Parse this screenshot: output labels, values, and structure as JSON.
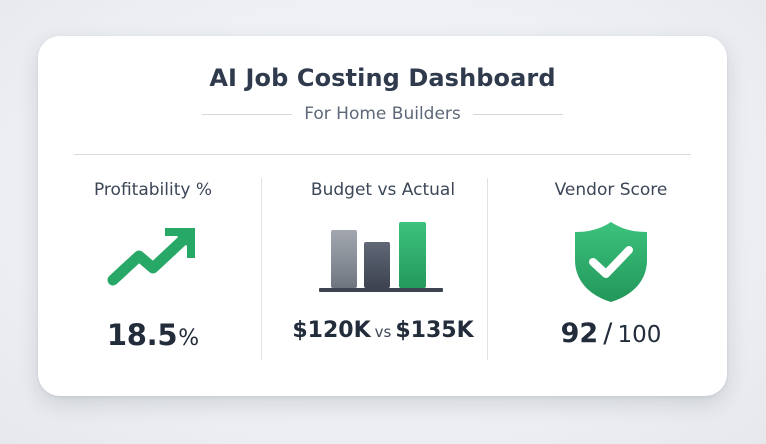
{
  "header": {
    "title": "AI Job Costing Dashboard",
    "subtitle": "For Home Builders"
  },
  "metrics": [
    {
      "label": "Profitability %",
      "icon": "trend-up-arrow-icon",
      "value": "18.5",
      "unit": "%",
      "color": "#27a867"
    },
    {
      "label": "Budget vs Actual",
      "icon": "bar-chart-icon",
      "budget": "$120K",
      "vs": "vs",
      "actual": "$135K",
      "colors": {
        "budget": "#8d929a",
        "budget_alt": "#4b5160",
        "actual": "#2fb06e"
      }
    },
    {
      "label": "Vendor Score",
      "icon": "shield-check-icon",
      "score": "92",
      "separator": "/",
      "max": "100",
      "color": "#2fb06e"
    }
  ]
}
